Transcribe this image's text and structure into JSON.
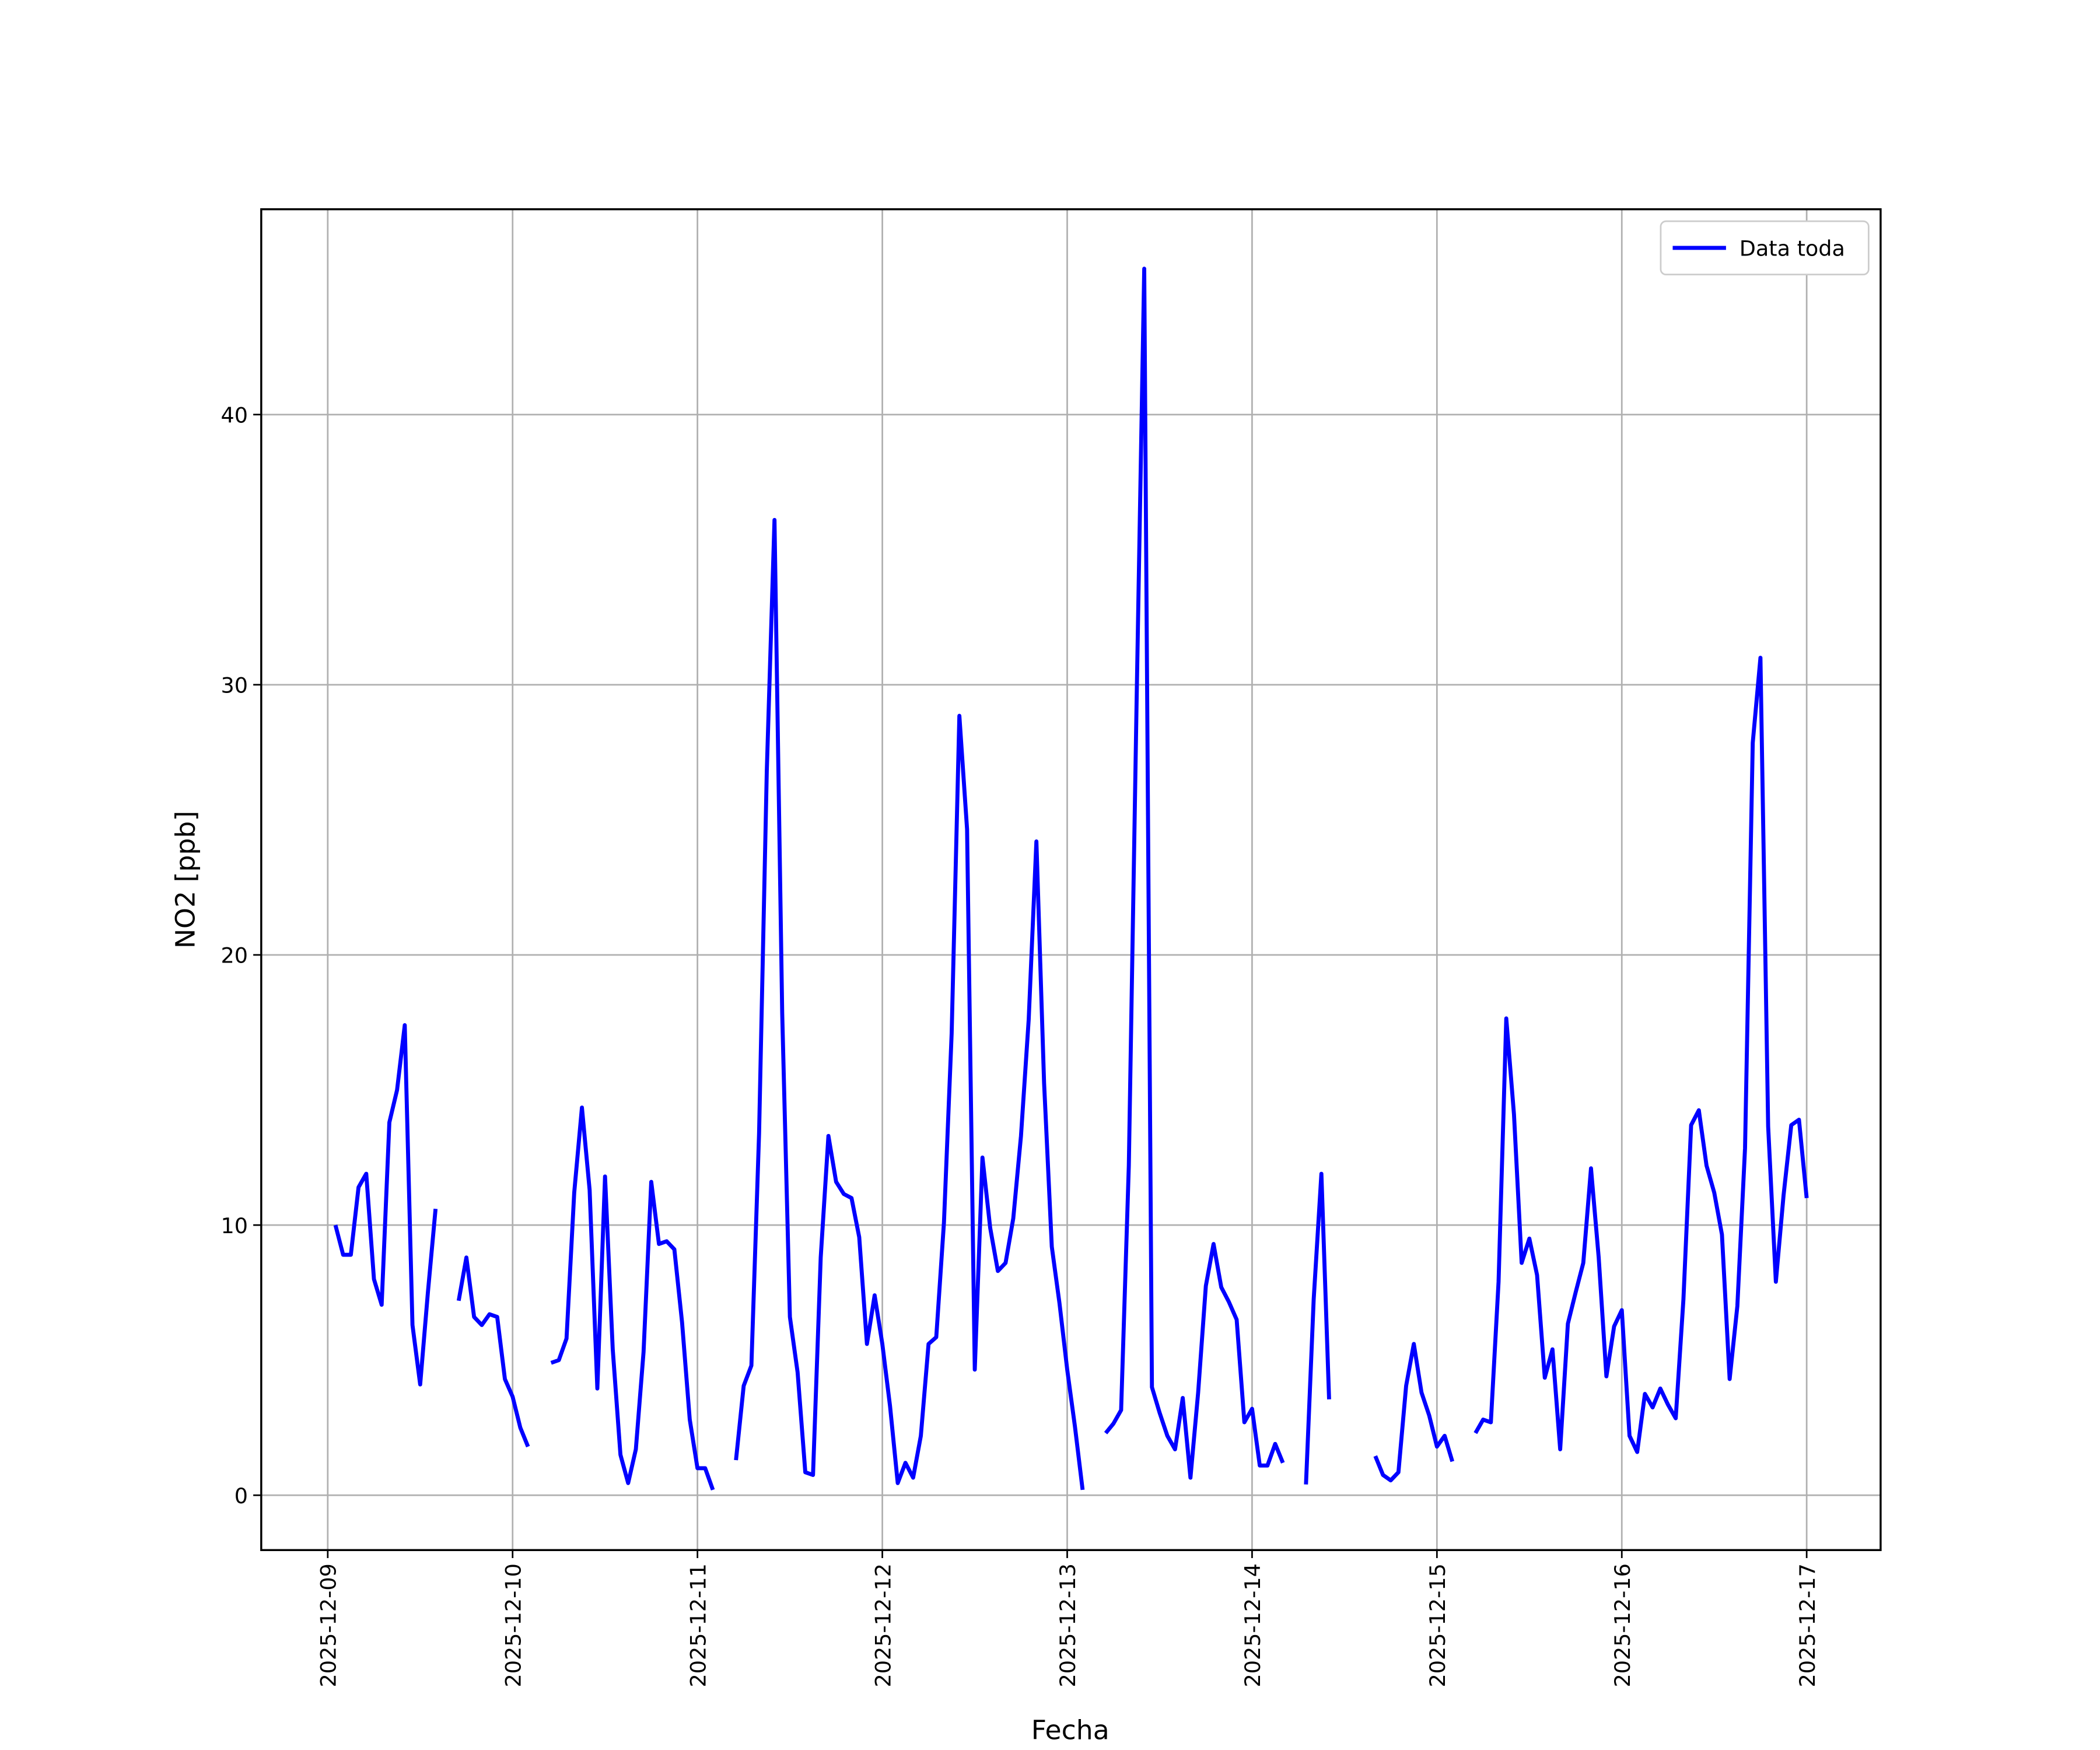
{
  "chart_data": {
    "type": "line",
    "xlabel": "Fecha",
    "ylabel": "NO2 [ppb]",
    "x": [
      "2025-12-09 01:00",
      "2025-12-09 02:00",
      "2025-12-09 03:00",
      "2025-12-09 04:00",
      "2025-12-09 05:00",
      "2025-12-09 06:00",
      "2025-12-09 07:00",
      "2025-12-09 08:00",
      "2025-12-09 09:00",
      "2025-12-09 10:00",
      "2025-12-09 11:00",
      "2025-12-09 12:00",
      "2025-12-09 13:00",
      "2025-12-09 14:00",
      "2025-12-09 15:00",
      "2025-12-09 16:00",
      "2025-12-09 17:00",
      "2025-12-09 18:00",
      "2025-12-09 19:00",
      "2025-12-09 20:00",
      "2025-12-09 21:00",
      "2025-12-09 22:00",
      "2025-12-09 23:00",
      "2025-12-10 00:00",
      "2025-12-10 01:00",
      "2025-12-10 02:00",
      "2025-12-10 03:00",
      "2025-12-10 04:00",
      "2025-12-10 05:00",
      "2025-12-10 06:00",
      "2025-12-10 07:00",
      "2025-12-10 08:00",
      "2025-12-10 09:00",
      "2025-12-10 10:00",
      "2025-12-10 11:00",
      "2025-12-10 12:00",
      "2025-12-10 13:00",
      "2025-12-10 14:00",
      "2025-12-10 15:00",
      "2025-12-10 16:00",
      "2025-12-10 17:00",
      "2025-12-10 18:00",
      "2025-12-10 19:00",
      "2025-12-10 20:00",
      "2025-12-10 21:00",
      "2025-12-10 22:00",
      "2025-12-10 23:00",
      "2025-12-11 00:00",
      "2025-12-11 01:00",
      "2025-12-11 02:00",
      "2025-12-11 03:00",
      "2025-12-11 04:00",
      "2025-12-11 05:00",
      "2025-12-11 06:00",
      "2025-12-11 07:00",
      "2025-12-11 08:00",
      "2025-12-11 09:00",
      "2025-12-11 10:00",
      "2025-12-11 11:00",
      "2025-12-11 12:00",
      "2025-12-11 13:00",
      "2025-12-11 14:00",
      "2025-12-11 15:00",
      "2025-12-11 16:00",
      "2025-12-11 17:00",
      "2025-12-11 18:00",
      "2025-12-11 19:00",
      "2025-12-11 20:00",
      "2025-12-11 21:00",
      "2025-12-11 22:00",
      "2025-12-11 23:00",
      "2025-12-12 00:00",
      "2025-12-12 01:00",
      "2025-12-12 02:00",
      "2025-12-12 03:00",
      "2025-12-12 04:00",
      "2025-12-12 05:00",
      "2025-12-12 06:00",
      "2025-12-12 07:00",
      "2025-12-12 08:00",
      "2025-12-12 09:00",
      "2025-12-12 10:00",
      "2025-12-12 11:00",
      "2025-12-12 12:00",
      "2025-12-12 13:00",
      "2025-12-12 14:00",
      "2025-12-12 15:00",
      "2025-12-12 16:00",
      "2025-12-12 17:00",
      "2025-12-12 18:00",
      "2025-12-12 19:00",
      "2025-12-12 20:00",
      "2025-12-12 21:00",
      "2025-12-12 22:00",
      "2025-12-12 23:00",
      "2025-12-13 00:00",
      "2025-12-13 01:00",
      "2025-12-13 02:00",
      "2025-12-13 03:00",
      "2025-12-13 04:00",
      "2025-12-13 05:00",
      "2025-12-13 06:00",
      "2025-12-13 07:00",
      "2025-12-13 08:00",
      "2025-12-13 09:00",
      "2025-12-13 10:00",
      "2025-12-13 11:00",
      "2025-12-13 12:00",
      "2025-12-13 13:00",
      "2025-12-13 14:00",
      "2025-12-13 15:00",
      "2025-12-13 16:00",
      "2025-12-13 17:00",
      "2025-12-13 18:00",
      "2025-12-13 19:00",
      "2025-12-13 20:00",
      "2025-12-13 21:00",
      "2025-12-13 22:00",
      "2025-12-13 23:00",
      "2025-12-14 00:00",
      "2025-12-14 01:00",
      "2025-12-14 02:00",
      "2025-12-14 03:00",
      "2025-12-14 04:00",
      "2025-12-14 05:00",
      "2025-12-14 06:00",
      "2025-12-14 07:00",
      "2025-12-14 08:00",
      "2025-12-14 09:00",
      "2025-12-14 10:00",
      "2025-12-14 11:00",
      "2025-12-14 12:00",
      "2025-12-14 13:00",
      "2025-12-14 14:00",
      "2025-12-14 15:00",
      "2025-12-14 16:00",
      "2025-12-14 17:00",
      "2025-12-14 18:00",
      "2025-12-14 19:00",
      "2025-12-14 20:00",
      "2025-12-14 21:00",
      "2025-12-14 22:00",
      "2025-12-14 23:00",
      "2025-12-15 00:00",
      "2025-12-15 01:00",
      "2025-12-15 02:00",
      "2025-12-15 03:00",
      "2025-12-15 04:00",
      "2025-12-15 05:00",
      "2025-12-15 06:00",
      "2025-12-15 07:00",
      "2025-12-15 08:00",
      "2025-12-15 09:00",
      "2025-12-15 10:00",
      "2025-12-15 11:00",
      "2025-12-15 12:00",
      "2025-12-15 13:00",
      "2025-12-15 14:00",
      "2025-12-15 15:00",
      "2025-12-15 16:00",
      "2025-12-15 17:00",
      "2025-12-15 18:00",
      "2025-12-15 19:00",
      "2025-12-15 20:00",
      "2025-12-15 21:00",
      "2025-12-15 22:00",
      "2025-12-15 23:00",
      "2025-12-16 00:00",
      "2025-12-16 01:00",
      "2025-12-16 02:00",
      "2025-12-16 03:00",
      "2025-12-16 04:00",
      "2025-12-16 05:00",
      "2025-12-16 06:00",
      "2025-12-16 07:00",
      "2025-12-16 08:00",
      "2025-12-16 09:00",
      "2025-12-16 10:00",
      "2025-12-16 11:00",
      "2025-12-16 12:00",
      "2025-12-16 13:00",
      "2025-12-16 14:00",
      "2025-12-16 15:00",
      "2025-12-16 16:00",
      "2025-12-16 17:00",
      "2025-12-16 18:00",
      "2025-12-16 19:00",
      "2025-12-16 20:00",
      "2025-12-16 21:00",
      "2025-12-16 22:00",
      "2025-12-16 23:00",
      "2025-12-17 00:00"
    ],
    "series": [
      {
        "name": "Data toda",
        "color": "#0000ff",
        "values": [
          10.0,
          8.9,
          8.9,
          11.4,
          11.9,
          8.0,
          7.05,
          13.8,
          15.0,
          17.4,
          6.3,
          4.1,
          7.5,
          10.6,
          null,
          null,
          7.2,
          8.8,
          6.6,
          6.3,
          6.7,
          6.6,
          4.3,
          3.65,
          2.5,
          1.8,
          null,
          null,
          4.9,
          5.0,
          5.8,
          11.2,
          14.35,
          11.3,
          3.95,
          11.8,
          5.4,
          1.5,
          0.45,
          1.7,
          5.3,
          11.6,
          9.3,
          9.4,
          9.1,
          6.4,
          2.8,
          1.0,
          1.0,
          0.2,
          null,
          null,
          1.3,
          4.05,
          4.8,
          13.4,
          26.8,
          36.1,
          17.85,
          6.6,
          4.55,
          0.85,
          0.75,
          8.8,
          13.3,
          11.6,
          11.15,
          11.0,
          9.55,
          5.6,
          7.4,
          5.6,
          3.3,
          0.45,
          1.2,
          0.65,
          2.2,
          5.6,
          5.85,
          10.1,
          17.1,
          28.85,
          24.65,
          4.65,
          12.5,
          9.9,
          8.3,
          8.6,
          10.25,
          13.3,
          17.6,
          24.2,
          15.25,
          9.2,
          7.1,
          4.65,
          2.55,
          0.2,
          null,
          null,
          2.3,
          2.65,
          3.15,
          12.2,
          29.2,
          45.4,
          4.0,
          3.05,
          2.2,
          1.7,
          3.6,
          0.65,
          3.8,
          7.75,
          9.3,
          7.7,
          7.15,
          6.5,
          2.7,
          3.2,
          1.1,
          1.1,
          1.9,
          1.2,
          null,
          null,
          0.4,
          7.25,
          11.9,
          3.55,
          null,
          null,
          null,
          null,
          null,
          1.45,
          0.75,
          0.55,
          0.85,
          4.05,
          5.6,
          3.8,
          2.95,
          1.8,
          2.2,
          1.25,
          null,
          null,
          2.3,
          2.8,
          2.7,
          7.9,
          17.65,
          14.1,
          8.6,
          9.5,
          8.15,
          4.35,
          5.4,
          1.7,
          6.35,
          7.5,
          8.6,
          12.1,
          8.8,
          4.4,
          6.25,
          6.85,
          2.2,
          1.6,
          3.75,
          3.25,
          3.95,
          3.35,
          2.85,
          7.25,
          13.7,
          14.25,
          12.2,
          11.2,
          9.65,
          4.3,
          7.0,
          12.85,
          27.85,
          31.0,
          13.65,
          7.9,
          11.1,
          13.7,
          13.9,
          11.0
        ]
      }
    ],
    "xlim": [
      "2025-12-08 15:22",
      "2025-12-17 09:36"
    ],
    "xticks": [
      "2025-12-09",
      "2025-12-10",
      "2025-12-11",
      "2025-12-12",
      "2025-12-13",
      "2025-12-14",
      "2025-12-15",
      "2025-12-16",
      "2025-12-17"
    ],
    "ylim": [
      -2.03,
      47.6
    ],
    "yticks": [
      0,
      10,
      20,
      30,
      40
    ],
    "grid": true,
    "legend": "upper right"
  }
}
